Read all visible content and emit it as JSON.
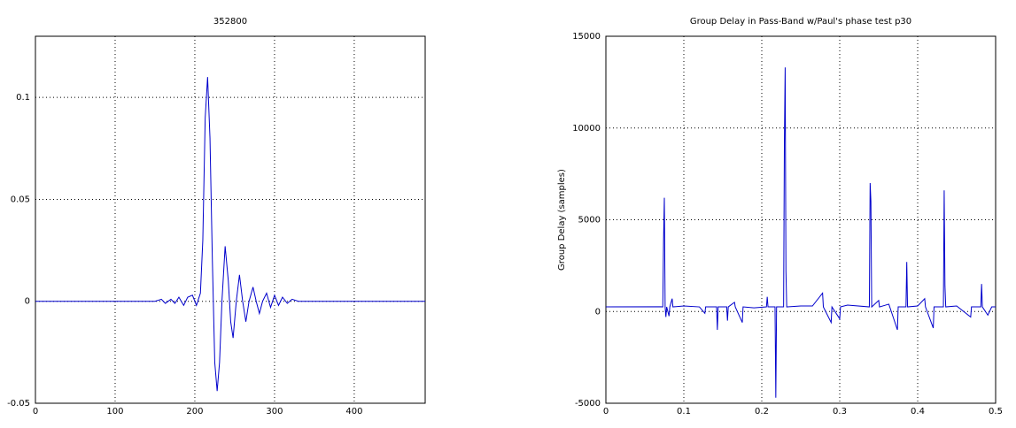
{
  "chart_data": [
    {
      "type": "line",
      "title": "352800",
      "x": [
        0,
        150,
        158,
        163,
        170,
        175,
        180,
        186,
        191,
        197,
        202,
        207,
        210,
        213,
        216,
        219,
        222,
        225,
        228,
        231,
        234,
        238,
        242,
        245,
        248,
        252,
        256,
        260,
        264,
        268,
        273,
        277,
        281,
        285,
        290,
        295,
        300,
        305,
        310,
        316,
        322,
        330,
        489
      ],
      "series": [
        {
          "color": "#0000cc",
          "values": [
            0,
            0,
            0.001,
            -0.001,
            0.001,
            -0.001,
            0.002,
            -0.002,
            0.002,
            0.003,
            -0.002,
            0.004,
            0.03,
            0.09,
            0.11,
            0.08,
            0.02,
            -0.03,
            -0.044,
            -0.03,
            0,
            0.027,
            0.01,
            -0.01,
            -0.018,
            0,
            0.013,
            0,
            -0.01,
            0,
            0.007,
            0,
            -0.006,
            0,
            0.004,
            -0.003,
            0.003,
            -0.002,
            0.002,
            -0.001,
            0.001,
            0,
            0
          ]
        }
      ],
      "xlim": [
        0,
        489
      ],
      "ylim": [
        -0.05,
        0.13
      ],
      "xticks": [
        0,
        100,
        200,
        300,
        400
      ],
      "yticks": [
        -0.05,
        0,
        0.05,
        0.1
      ],
      "grid": true
    },
    {
      "type": "line",
      "title": "Group Delay in Pass-Band w/Paul's phase test p30",
      "y_label": "Group Delay (samples)",
      "x": [
        0,
        0.07,
        0.073,
        0.074,
        0.075,
        0.076,
        0.077,
        0.078,
        0.081,
        0.082,
        0.085,
        0.086,
        0.1,
        0.12,
        0.127,
        0.128,
        0.142,
        0.143,
        0.144,
        0.155,
        0.156,
        0.157,
        0.165,
        0.166,
        0.175,
        0.176,
        0.19,
        0.206,
        0.207,
        0.208,
        0.217,
        0.218,
        0.219,
        0.228,
        0.229,
        0.23,
        0.231,
        0.232,
        0.25,
        0.265,
        0.278,
        0.279,
        0.289,
        0.29,
        0.3,
        0.301,
        0.31,
        0.338,
        0.339,
        0.34,
        0.341,
        0.35,
        0.351,
        0.363,
        0.374,
        0.375,
        0.385,
        0.386,
        0.387,
        0.4,
        0.409,
        0.41,
        0.42,
        0.421,
        0.433,
        0.434,
        0.435,
        0.436,
        0.45,
        0.468,
        0.469,
        0.481,
        0.482,
        0.483,
        0.49,
        0.495,
        0.5
      ],
      "series": [
        {
          "color": "#0000cc",
          "values": [
            250,
            260,
            250,
            3900,
            6200,
            250,
            -300,
            250,
            -250,
            250,
            700,
            250,
            300,
            250,
            -100,
            250,
            250,
            -1000,
            250,
            250,
            -500,
            250,
            500,
            250,
            -600,
            250,
            200,
            250,
            800,
            250,
            250,
            -4700,
            250,
            250,
            9200,
            13300,
            2200,
            250,
            300,
            300,
            1000,
            250,
            -600,
            250,
            -400,
            250,
            350,
            250,
            7000,
            6000,
            250,
            600,
            250,
            400,
            -1000,
            250,
            250,
            2700,
            250,
            300,
            700,
            250,
            -900,
            250,
            250,
            6600,
            1400,
            250,
            300,
            -300,
            250,
            250,
            1500,
            250,
            -200,
            250,
            250
          ]
        }
      ],
      "xlim": [
        0,
        0.5
      ],
      "ylim": [
        -5000,
        15000
      ],
      "xticks": [
        0,
        0.1,
        0.2,
        0.3,
        0.4,
        0.5
      ],
      "yticks": [
        -5000,
        0,
        5000,
        10000,
        15000
      ],
      "grid": true
    }
  ]
}
